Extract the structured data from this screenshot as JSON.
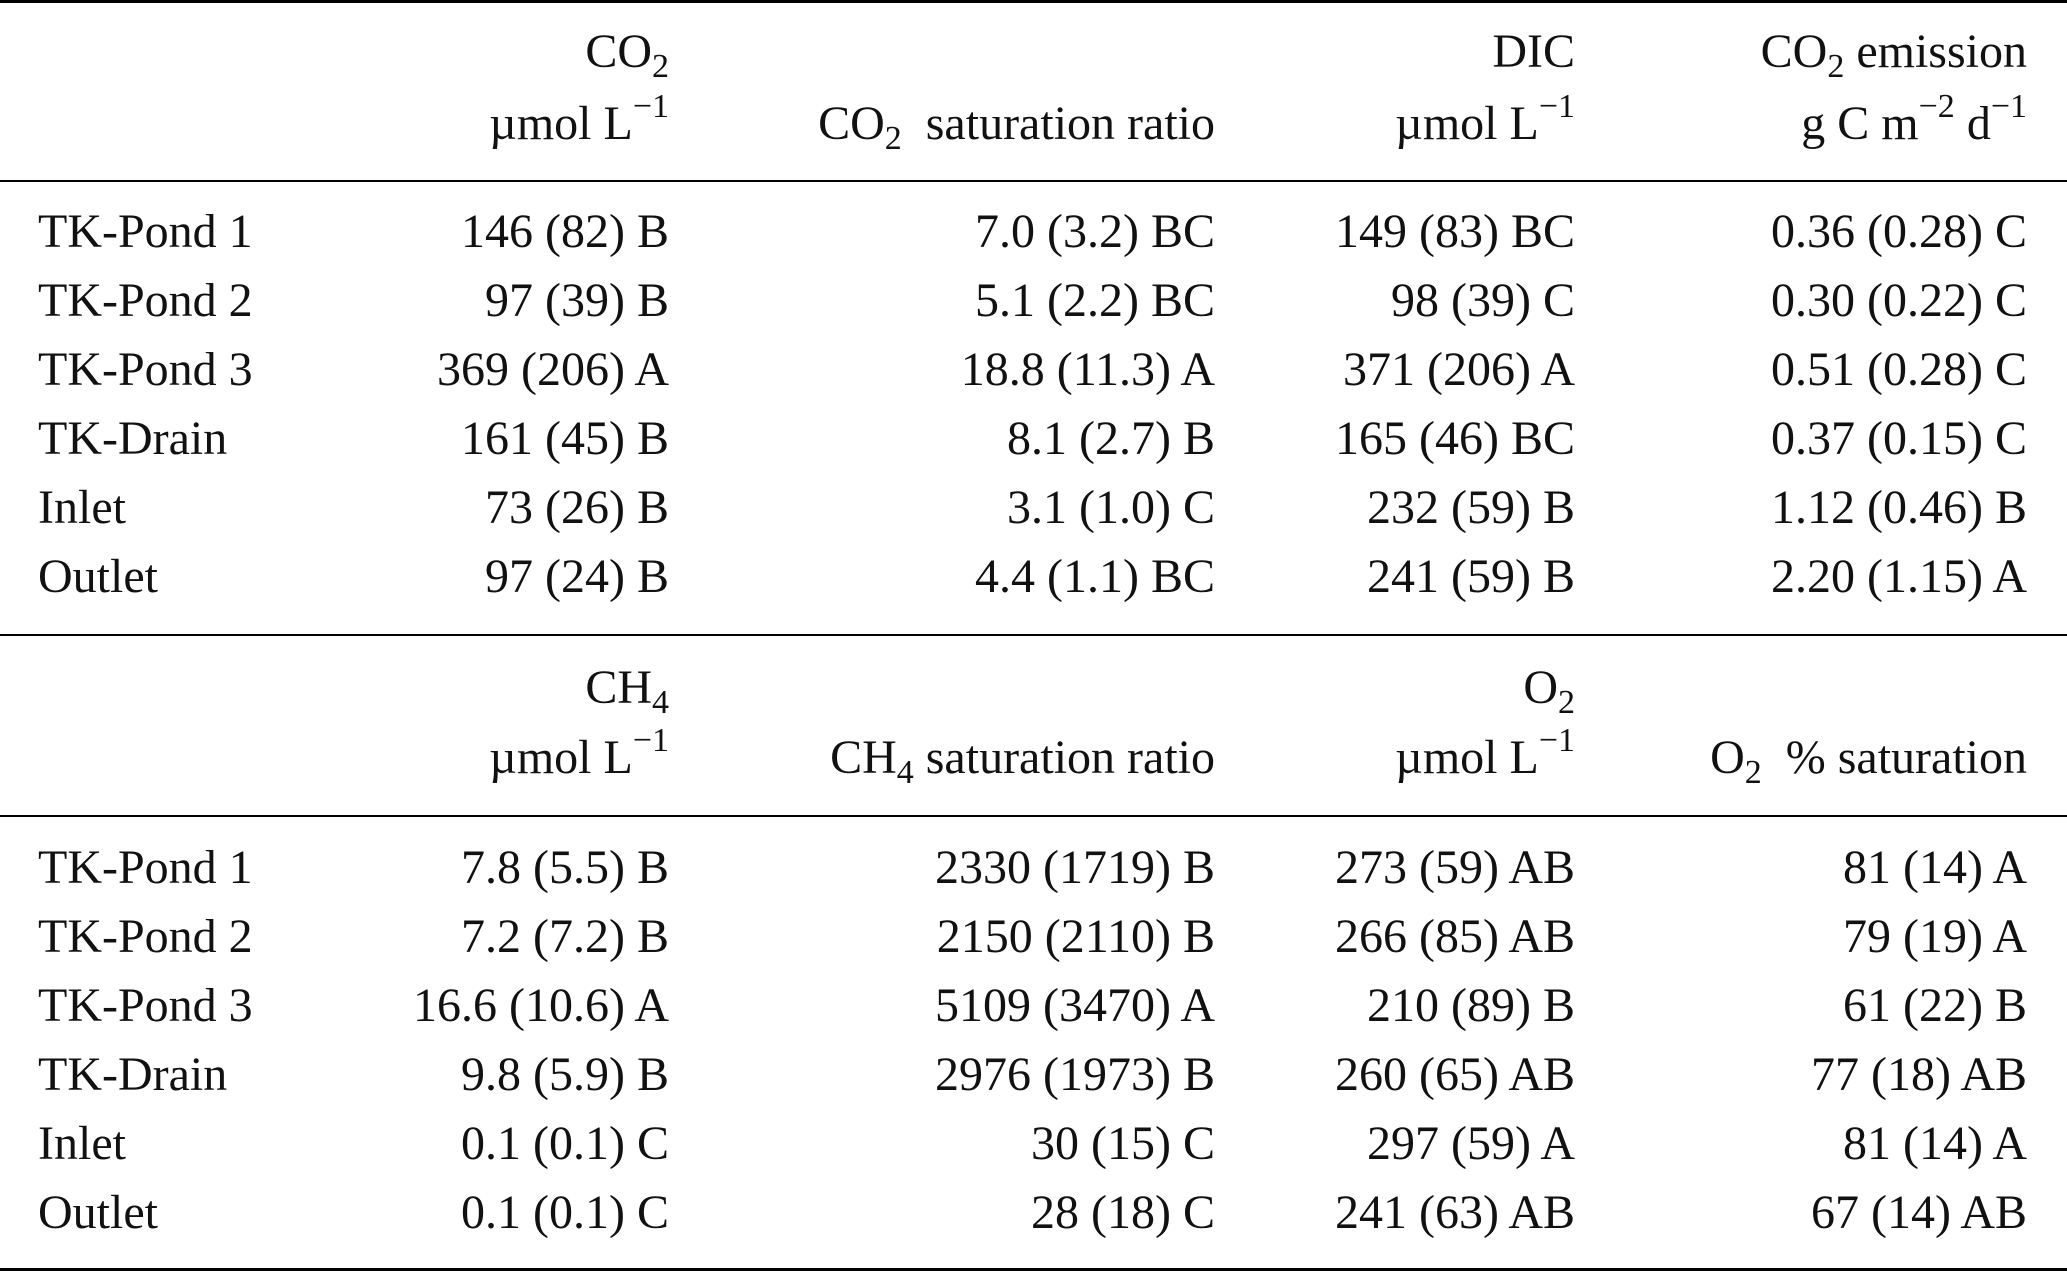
{
  "upper": {
    "headers": {
      "col1": {
        "line1_base": "CO",
        "line1_sub": "2",
        "line2": "µmol L",
        "line2_sup": "−1"
      },
      "col2": {
        "base": "CO",
        "sub": "2",
        "rest": "  saturation ratio"
      },
      "col3": {
        "line1": "DIC",
        "line2": "µmol L",
        "line2_sup": "−1"
      },
      "col4": {
        "line1_base": "CO",
        "line1_sub": "2",
        "line1_rest": " emission",
        "line2_a": "g C m",
        "line2_sup1": "−2",
        "line2_b": " d",
        "line2_sup2": "−1"
      }
    },
    "rows": [
      {
        "label": "TK-Pond 1",
        "c1": "146 (82) B",
        "c2": "7.0 (3.2) BC",
        "c3": "149 (83) BC",
        "c4": "0.36 (0.28) C"
      },
      {
        "label": "TK-Pond 2",
        "c1": "97 (39) B",
        "c2": "5.1 (2.2) BC",
        "c3": "98 (39) C",
        "c4": "0.30 (0.22) C"
      },
      {
        "label": "TK-Pond 3",
        "c1": "369 (206) A",
        "c2": "18.8 (11.3) A",
        "c3": "371 (206) A",
        "c4": "0.51 (0.28) C"
      },
      {
        "label": "TK-Drain",
        "c1": "161 (45) B",
        "c2": "8.1 (2.7) B",
        "c3": "165 (46) BC",
        "c4": "0.37 (0.15) C"
      },
      {
        "label": "Inlet",
        "c1": "73 (26) B",
        "c2": "3.1 (1.0) C",
        "c3": "232 (59) B",
        "c4": "1.12 (0.46) B"
      },
      {
        "label": "Outlet",
        "c1": "97 (24) B",
        "c2": "4.4 (1.1) BC",
        "c3": "241 (59) B",
        "c4": "2.20 (1.15) A"
      }
    ]
  },
  "lower": {
    "headers": {
      "col1": {
        "line1_base": "CH",
        "line1_sub": "4",
        "line2": "µmol L",
        "line2_sup": "−1"
      },
      "col2": {
        "base": "CH",
        "sub": "4",
        "rest": " saturation ratio"
      },
      "col3": {
        "line1_base": "O",
        "line1_sub": "2",
        "line2": "µmol L",
        "line2_sup": "−1"
      },
      "col4": {
        "base": "O",
        "sub": "2",
        "rest": "  % saturation"
      }
    },
    "rows": [
      {
        "label": "TK-Pond 1",
        "c1": "7.8 (5.5) B",
        "c2": "2330 (1719) B",
        "c3": "273 (59) AB",
        "c4": "81 (14) A"
      },
      {
        "label": "TK-Pond 2",
        "c1": "7.2 (7.2) B",
        "c2": "2150 (2110) B",
        "c3": "266 (85) AB",
        "c4": "79 (19) A"
      },
      {
        "label": "TK-Pond 3",
        "c1": "16.6 (10.6) A",
        "c2": "5109 (3470) A",
        "c3": "210 (89) B",
        "c4": "61 (22) B"
      },
      {
        "label": "TK-Drain",
        "c1": "9.8 (5.9) B",
        "c2": "2976 (1973) B",
        "c3": "260 (65) AB",
        "c4": "77 (18) AB"
      },
      {
        "label": "Inlet",
        "c1": "0.1 (0.1) C",
        "c2": "30 (15) C",
        "c3": "297 (59) A",
        "c4": "81 (14) A"
      },
      {
        "label": "Outlet",
        "c1": "0.1 (0.1) C",
        "c2": "28 (18) C",
        "c3": "241 (63) AB",
        "c4": "67 (14) AB"
      }
    ]
  }
}
